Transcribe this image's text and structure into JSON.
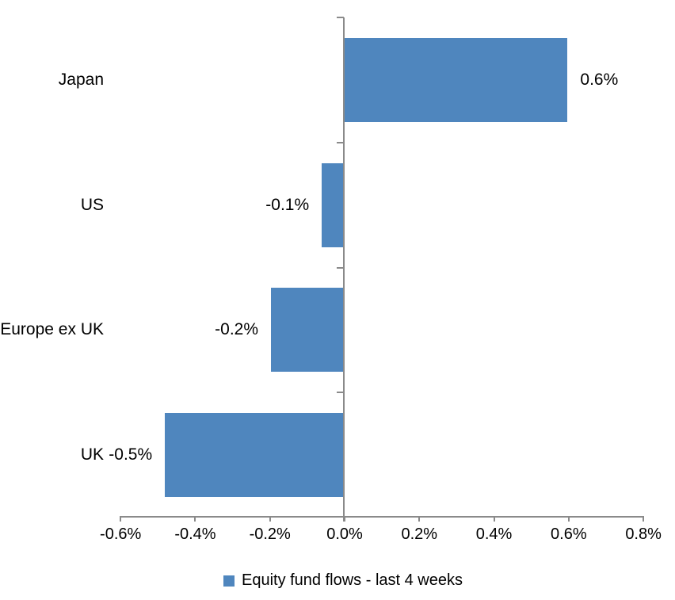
{
  "chart_data": {
    "type": "bar",
    "orientation": "horizontal",
    "title": "",
    "xlabel": "",
    "ylabel": "",
    "categories": [
      "Japan",
      "US",
      "Europe ex UK",
      "UK"
    ],
    "values": [
      0.6,
      -0.1,
      -0.2,
      -0.5
    ],
    "value_labels": [
      "0.6%",
      "-0.1%",
      "-0.2%",
      "-0.5%"
    ],
    "drawn_values": [
      0.597,
      -0.057,
      -0.193,
      -0.477
    ],
    "series_name": "Equity fund flows - last 4 weeks",
    "xlim": [
      -0.6,
      0.8
    ],
    "x_ticks": [
      -0.6,
      -0.4,
      -0.2,
      0.0,
      0.2,
      0.4,
      0.6,
      0.8
    ],
    "x_tick_labels": [
      "-0.6%",
      "-0.4%",
      "-0.2%",
      "0.0%",
      "0.2%",
      "0.4%",
      "0.6%",
      "0.8%"
    ],
    "grid": false,
    "legend_position": "bottom",
    "bar_color": "#4F86BE",
    "axis_color": "#8A8A8A",
    "text_color": "#000000"
  },
  "legend": {
    "marker": "blue-square",
    "label": "Equity fund flows - last 4 weeks"
  }
}
